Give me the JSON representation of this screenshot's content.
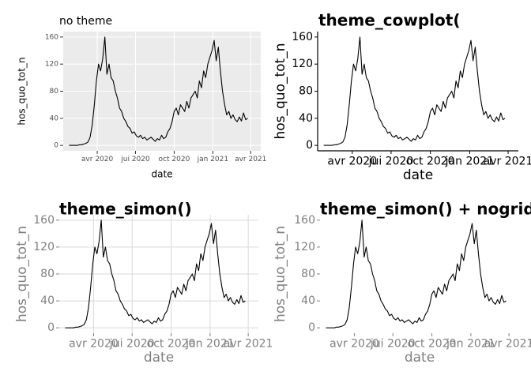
{
  "chart_data": [
    {
      "type": "line",
      "title": "no theme",
      "xlabel": "date",
      "ylabel": "hos_quo_tot_n",
      "color": "#000000",
      "background": "#ebebeb",
      "grid": true,
      "x": [
        24,
        29,
        34,
        39,
        44,
        49,
        54,
        59,
        64,
        69,
        74,
        79,
        84,
        89,
        94,
        99,
        104,
        109,
        114,
        119,
        124,
        129,
        134,
        139,
        144,
        149,
        154,
        159,
        164,
        169,
        174,
        179,
        184,
        189,
        194,
        199,
        204,
        209,
        214,
        219,
        224,
        229,
        234,
        239,
        244,
        249,
        254,
        259,
        264,
        269,
        274,
        279,
        284,
        289,
        294,
        299,
        304,
        309,
        314,
        319,
        324,
        329,
        334,
        339,
        344,
        349,
        354,
        359,
        364,
        369,
        374,
        379,
        384,
        389,
        394,
        399,
        404,
        409,
        414,
        419,
        424,
        429,
        434,
        439,
        444,
        449
      ],
      "values": [
        0,
        0,
        0,
        0,
        0,
        1,
        1,
        2,
        3,
        5,
        12,
        30,
        60,
        95,
        120,
        110,
        128,
        160,
        105,
        120,
        100,
        95,
        80,
        70,
        55,
        50,
        40,
        35,
        28,
        25,
        18,
        20,
        14,
        12,
        15,
        10,
        12,
        8,
        10,
        12,
        9,
        6,
        10,
        8,
        15,
        10,
        12,
        20,
        25,
        35,
        50,
        55,
        45,
        60,
        55,
        50,
        65,
        55,
        70,
        75,
        80,
        70,
        95,
        85,
        110,
        100,
        120,
        130,
        140,
        155,
        125,
        145,
        110,
        80,
        60,
        45,
        50,
        40,
        45,
        38,
        35,
        42,
        36,
        48,
        38,
        40
      ],
      "xlim": [
        10,
        480
      ],
      "ylim": [
        -8,
        168
      ],
      "xticks": [
        {
          "value": 91,
          "label": "avr 2020"
        },
        {
          "value": 182,
          "label": "jui 2020"
        },
        {
          "value": 274,
          "label": "oct 2020"
        },
        {
          "value": 366,
          "label": "jan 2021"
        },
        {
          "value": 456,
          "label": "avr 2021"
        }
      ],
      "yticks": [
        0,
        40,
        80,
        120,
        160
      ]
    },
    {
      "type": "line",
      "title": "theme_cowplot(",
      "xlabel": "date",
      "ylabel": "hos_quo_tot_n",
      "color": "#000000",
      "grid": false,
      "x": [
        24,
        29,
        34,
        39,
        44,
        49,
        54,
        59,
        64,
        69,
        74,
        79,
        84,
        89,
        94,
        99,
        104,
        109,
        114,
        119,
        124,
        129,
        134,
        139,
        144,
        149,
        154,
        159,
        164,
        169,
        174,
        179,
        184,
        189,
        194,
        199,
        204,
        209,
        214,
        219,
        224,
        229,
        234,
        239,
        244,
        249,
        254,
        259,
        264,
        269,
        274,
        279,
        284,
        289,
        294,
        299,
        304,
        309,
        314,
        319,
        324,
        329,
        334,
        339,
        344,
        349,
        354,
        359,
        364,
        369,
        374,
        379,
        384,
        389,
        394,
        399,
        404,
        409,
        414,
        419,
        424,
        429,
        434,
        439,
        444,
        449
      ],
      "values": [
        0,
        0,
        0,
        0,
        0,
        1,
        1,
        2,
        3,
        5,
        12,
        30,
        60,
        95,
        120,
        110,
        128,
        160,
        105,
        120,
        100,
        95,
        80,
        70,
        55,
        50,
        40,
        35,
        28,
        25,
        18,
        20,
        14,
        12,
        15,
        10,
        12,
        8,
        10,
        12,
        9,
        6,
        10,
        8,
        15,
        10,
        12,
        20,
        25,
        35,
        50,
        55,
        45,
        60,
        55,
        50,
        65,
        55,
        70,
        75,
        80,
        70,
        95,
        85,
        110,
        100,
        120,
        130,
        140,
        155,
        125,
        145,
        110,
        80,
        60,
        45,
        50,
        40,
        45,
        38,
        35,
        42,
        36,
        48,
        38,
        40
      ],
      "xlim": [
        10,
        480
      ],
      "ylim": [
        -8,
        168
      ],
      "xticks": [
        {
          "value": 91,
          "label": "avr 2020"
        },
        {
          "value": 182,
          "label": "jui 2020"
        },
        {
          "value": 274,
          "label": "oct 2020"
        },
        {
          "value": 366,
          "label": "jan 2021"
        },
        {
          "value": 456,
          "label": "avr 2021"
        }
      ],
      "yticks": [
        0,
        40,
        80,
        120,
        160
      ]
    },
    {
      "type": "line",
      "title": "theme_simon()",
      "xlabel": "date",
      "ylabel": "hos_quo_tot_n",
      "color": "#000000",
      "grid": true,
      "x": [
        24,
        29,
        34,
        39,
        44,
        49,
        54,
        59,
        64,
        69,
        74,
        79,
        84,
        89,
        94,
        99,
        104,
        109,
        114,
        119,
        124,
        129,
        134,
        139,
        144,
        149,
        154,
        159,
        164,
        169,
        174,
        179,
        184,
        189,
        194,
        199,
        204,
        209,
        214,
        219,
        224,
        229,
        234,
        239,
        244,
        249,
        254,
        259,
        264,
        269,
        274,
        279,
        284,
        289,
        294,
        299,
        304,
        309,
        314,
        319,
        324,
        329,
        334,
        339,
        344,
        349,
        354,
        359,
        364,
        369,
        374,
        379,
        384,
        389,
        394,
        399,
        404,
        409,
        414,
        419,
        424,
        429,
        434,
        439,
        444,
        449
      ],
      "values": [
        0,
        0,
        0,
        0,
        0,
        1,
        1,
        2,
        3,
        5,
        12,
        30,
        60,
        95,
        120,
        110,
        128,
        160,
        105,
        120,
        100,
        95,
        80,
        70,
        55,
        50,
        40,
        35,
        28,
        25,
        18,
        20,
        14,
        12,
        15,
        10,
        12,
        8,
        10,
        12,
        9,
        6,
        10,
        8,
        15,
        10,
        12,
        20,
        25,
        35,
        50,
        55,
        45,
        60,
        55,
        50,
        65,
        55,
        70,
        75,
        80,
        70,
        95,
        85,
        110,
        100,
        120,
        130,
        140,
        155,
        125,
        145,
        110,
        80,
        60,
        45,
        50,
        40,
        45,
        38,
        35,
        42,
        36,
        48,
        38,
        40
      ],
      "xlim": [
        10,
        480
      ],
      "ylim": [
        -8,
        168
      ],
      "xticks": [
        {
          "value": 91,
          "label": "avr 2020"
        },
        {
          "value": 182,
          "label": "jui 2020"
        },
        {
          "value": 274,
          "label": "oct 2020"
        },
        {
          "value": 366,
          "label": "jan 2021"
        },
        {
          "value": 456,
          "label": "avr 2021"
        }
      ],
      "yticks": [
        0,
        40,
        80,
        120,
        160
      ]
    },
    {
      "type": "line",
      "title": "theme_simon() + nogrid()",
      "xlabel": "date",
      "ylabel": "hos_quo_tot_n",
      "color": "#000000",
      "grid": false,
      "x": [
        24,
        29,
        34,
        39,
        44,
        49,
        54,
        59,
        64,
        69,
        74,
        79,
        84,
        89,
        94,
        99,
        104,
        109,
        114,
        119,
        124,
        129,
        134,
        139,
        144,
        149,
        154,
        159,
        164,
        169,
        174,
        179,
        184,
        189,
        194,
        199,
        204,
        209,
        214,
        219,
        224,
        229,
        234,
        239,
        244,
        249,
        254,
        259,
        264,
        269,
        274,
        279,
        284,
        289,
        294,
        299,
        304,
        309,
        314,
        319,
        324,
        329,
        334,
        339,
        344,
        349,
        354,
        359,
        364,
        369,
        374,
        379,
        384,
        389,
        394,
        399,
        404,
        409,
        414,
        419,
        424,
        429,
        434,
        439,
        444,
        449
      ],
      "values": [
        0,
        0,
        0,
        0,
        0,
        1,
        1,
        2,
        3,
        5,
        12,
        30,
        60,
        95,
        120,
        110,
        128,
        160,
        105,
        120,
        100,
        95,
        80,
        70,
        55,
        50,
        40,
        35,
        28,
        25,
        18,
        20,
        14,
        12,
        15,
        10,
        12,
        8,
        10,
        12,
        9,
        6,
        10,
        8,
        15,
        10,
        12,
        20,
        25,
        35,
        50,
        55,
        45,
        60,
        55,
        50,
        65,
        55,
        70,
        75,
        80,
        70,
        95,
        85,
        110,
        100,
        120,
        130,
        140,
        155,
        125,
        145,
        110,
        80,
        60,
        45,
        50,
        40,
        45,
        38,
        35,
        42,
        36,
        48,
        38,
        40
      ],
      "xlim": [
        10,
        480
      ],
      "ylim": [
        -8,
        168
      ],
      "xticks": [
        {
          "value": 91,
          "label": "avr 2020"
        },
        {
          "value": 182,
          "label": "jui 2020"
        },
        {
          "value": 274,
          "label": "oct 2020"
        },
        {
          "value": 366,
          "label": "jan 2021"
        },
        {
          "value": 456,
          "label": "avr 2021"
        }
      ],
      "yticks": [
        0,
        40,
        80,
        120,
        160
      ]
    }
  ]
}
